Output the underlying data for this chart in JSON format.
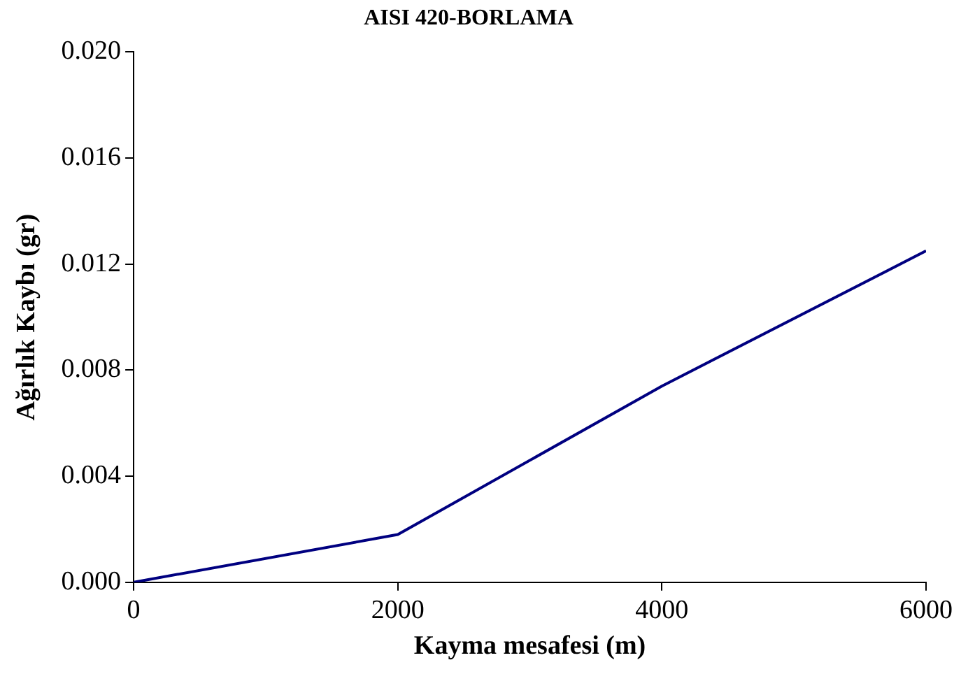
{
  "chart_data": {
    "type": "line",
    "title": "AISI 420-BORLAMA",
    "xlabel": "Kayma mesafesi (m)",
    "ylabel": "Ağırlık Kaybı (gr)",
    "x": [
      0,
      2000,
      4000,
      6000
    ],
    "series": [
      {
        "color": "#000080",
        "values": [
          0,
          0.0018,
          0.0074,
          0.0125
        ]
      }
    ],
    "xlim": [
      0,
      6000
    ],
    "xticks": [
      0,
      2000,
      4000,
      6000
    ],
    "ylim": [
      0,
      0.02
    ],
    "yticks": [
      {
        "value": 0,
        "label": "0.000"
      },
      {
        "value": 0.004,
        "label": "0.004"
      },
      {
        "value": 0.008,
        "label": "0.008"
      },
      {
        "value": 0.012,
        "label": "0.012"
      },
      {
        "value": 0.016,
        "label": "0.016"
      },
      {
        "value": 0.02,
        "label": "0.020"
      }
    ],
    "grid": false,
    "legend": false,
    "marker": "none",
    "line_style": "solid"
  }
}
